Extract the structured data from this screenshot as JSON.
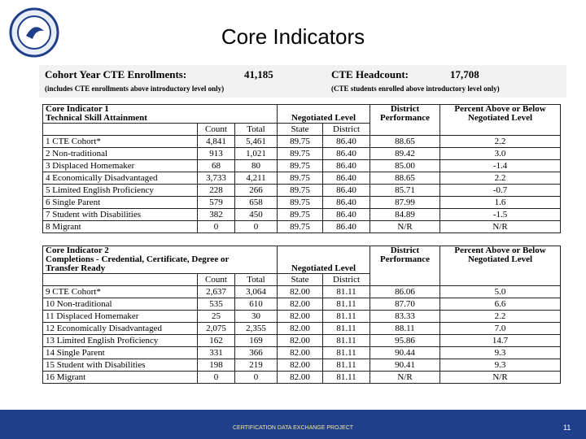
{
  "header": {
    "title": "Core Indicators",
    "enrollments_label": "Cohort Year CTE Enrollments:",
    "enrollments_value": "41,185",
    "headcount_label": "CTE Headcount:",
    "headcount_value": "17,708",
    "enrollments_note": "(includes CTE enrollments above introductory level only)",
    "headcount_note": "(CTE students enrolled above introductory level only)"
  },
  "tables": [
    {
      "title": [
        "Core Indicator 1",
        "Technical Skill Attainment"
      ],
      "negotiated": "Negotiated Level",
      "district": "District Performance",
      "percent": "Percent Above or Below Negotiated Level",
      "columns": [
        "Count",
        "Total",
        "State",
        "District"
      ],
      "rows": [
        [
          "1  CTE Cohort*",
          "4,841",
          "5,461",
          "89.75",
          "86.40",
          "88.65",
          "2.2"
        ],
        [
          "2  Non-traditional",
          "913",
          "1,021",
          "89.75",
          "86.40",
          "89.42",
          "3.0"
        ],
        [
          "3  Displaced Homemaker",
          "68",
          "80",
          "89.75",
          "86.40",
          "85.00",
          "-1.4"
        ],
        [
          "4  Economically Disadvantaged",
          "3,733",
          "4,211",
          "89.75",
          "86.40",
          "88.65",
          "2.2"
        ],
        [
          "5  Limited English Proficiency",
          "228",
          "266",
          "89.75",
          "86.40",
          "85.71",
          "-0.7"
        ],
        [
          "6  Single Parent",
          "579",
          "658",
          "89.75",
          "86.40",
          "87.99",
          "1.6"
        ],
        [
          "7  Student with Disabilities",
          "382",
          "450",
          "89.75",
          "86.40",
          "84.89",
          "-1.5"
        ],
        [
          "8  Migrant",
          "0",
          "0",
          "89.75",
          "86.40",
          "N/R",
          "N/R"
        ]
      ]
    },
    {
      "title": [
        "Core Indicator 2",
        "Completions - Credential, Certificate, Degree or",
        "Transfer Ready"
      ],
      "negotiated": "Negotiated Level",
      "district": "District Performance",
      "percent": "Percent Above or Below Negotiated Level",
      "columns": [
        "Count",
        "Total",
        "State",
        "District"
      ],
      "rows": [
        [
          "9  CTE Cohort*",
          "2,637",
          "3,064",
          "82.00",
          "81.11",
          "86.06",
          "5.0"
        ],
        [
          "10 Non-traditional",
          "535",
          "610",
          "82.00",
          "81.11",
          "87.70",
          "6.6"
        ],
        [
          "11 Displaced Homemaker",
          "25",
          "30",
          "82.00",
          "81.11",
          "83.33",
          "2.2"
        ],
        [
          "12 Economically Disadvantaged",
          "2,075",
          "2,355",
          "82.00",
          "81.11",
          "88.11",
          "7.0"
        ],
        [
          "13 Limited English Proficiency",
          "162",
          "169",
          "82.00",
          "81.11",
          "95.86",
          "14.7"
        ],
        [
          "14 Single Parent",
          "331",
          "366",
          "82.00",
          "81.11",
          "90.44",
          "9.3"
        ],
        [
          "15 Student with Disabilities",
          "198",
          "219",
          "82.00",
          "81.11",
          "90.41",
          "9.3"
        ],
        [
          "16 Migrant",
          "0",
          "0",
          "82.00",
          "81.11",
          "N/R",
          "N/R"
        ]
      ]
    }
  ],
  "footer": {
    "project": "CERTIFICATION DATA EXCHANGE PROJECT",
    "page": "11"
  }
}
